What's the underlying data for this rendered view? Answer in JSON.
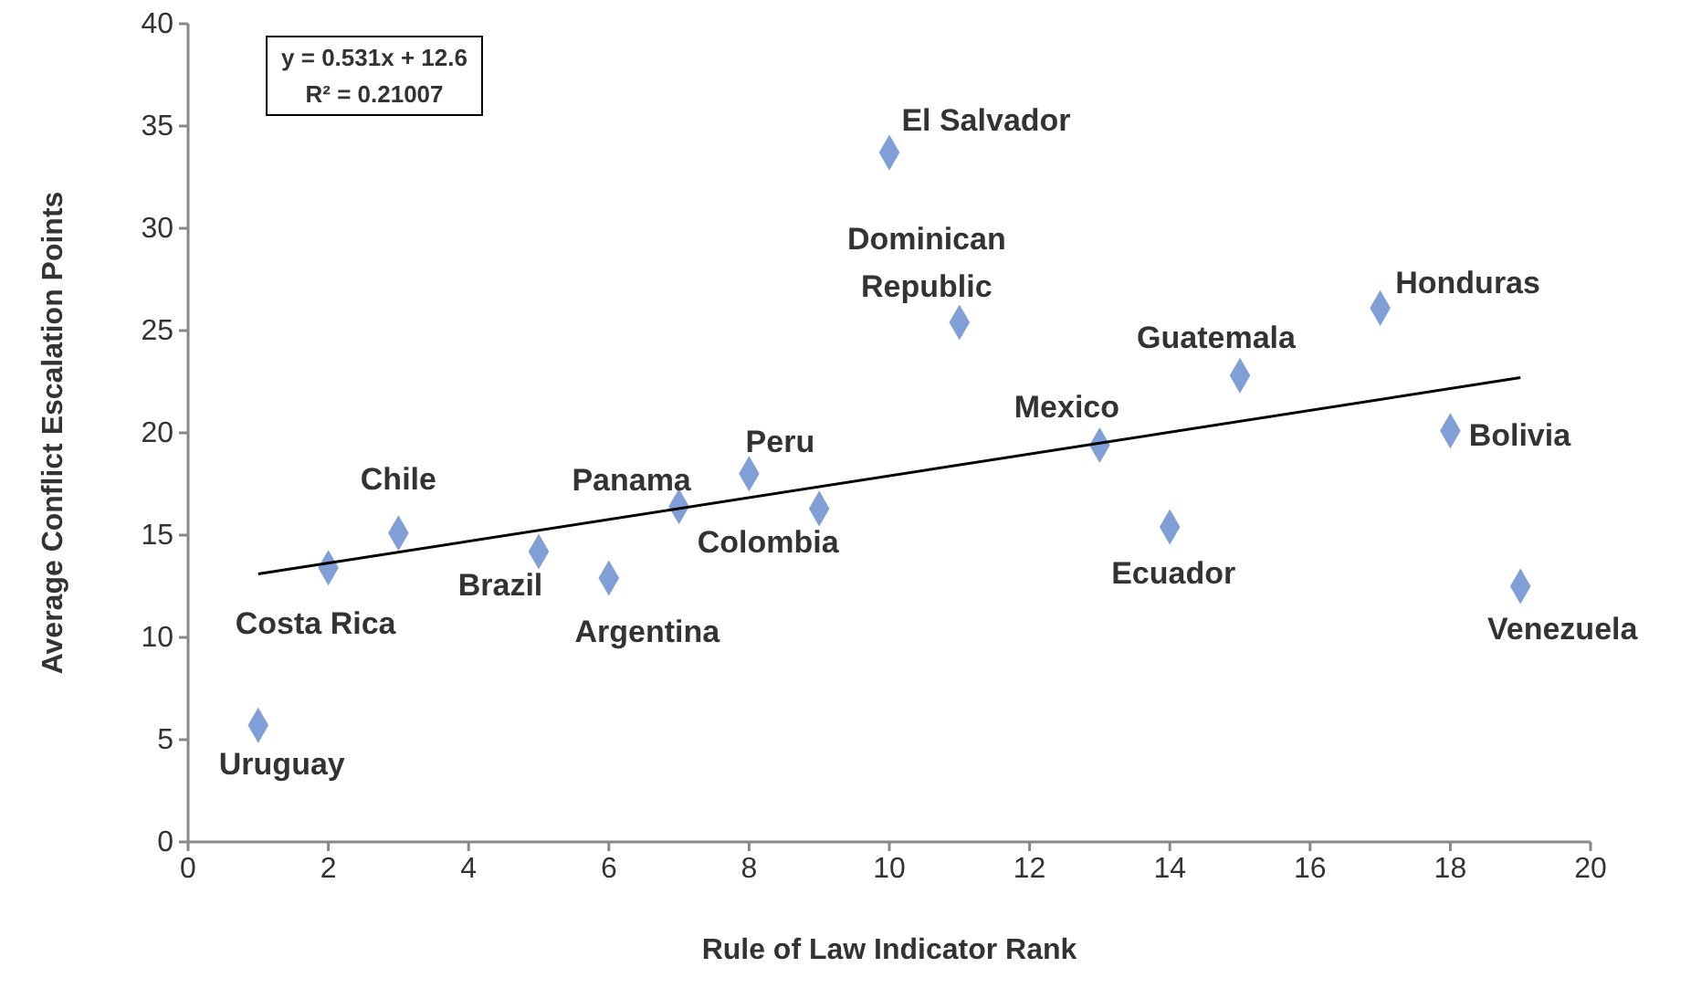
{
  "chart_data": {
    "type": "scatter",
    "xlabel": "Rule of Law Indicator Rank",
    "ylabel": "Average Conflict Escalation Points",
    "xlim": [
      0,
      20
    ],
    "ylim": [
      0,
      40
    ],
    "xticks": [
      0,
      2,
      4,
      6,
      8,
      10,
      12,
      14,
      16,
      18,
      20
    ],
    "yticks": [
      0,
      5,
      10,
      15,
      20,
      25,
      30,
      35,
      40
    ],
    "grid": false,
    "marker": "diamond",
    "series": [
      {
        "color": "#7f9fd6",
        "x": [
          1,
          2,
          3,
          5,
          6,
          7,
          8,
          9,
          10,
          11,
          13,
          14,
          15,
          17,
          18,
          19
        ],
        "values": [
          5.7,
          13.4,
          15.1,
          14.2,
          12.9,
          16.4,
          18.0,
          16.3,
          33.7,
          25.4,
          19.4,
          15.4,
          22.8,
          26.1,
          20.1,
          12.5
        ]
      },
      {
        "type": "line",
        "marker": "none",
        "color": "#000000",
        "x": [
          1,
          19
        ],
        "values": [
          13.1,
          22.7
        ]
      }
    ],
    "annotations": [
      "y = 0.531x + 12.6",
      "R² = 0.21007",
      {
        "text": "Uruguay",
        "x": 1,
        "y": 5.7
      },
      {
        "text": "Costa Rica",
        "x": 2,
        "y": 13.4
      },
      {
        "text": "Chile",
        "x": 3,
        "y": 15.1
      },
      {
        "text": "Brazil",
        "x": 5,
        "y": 14.2
      },
      {
        "text": "Argentina",
        "x": 6,
        "y": 12.9
      },
      {
        "text": "Panama",
        "x": 7,
        "y": 16.4
      },
      {
        "text": "Peru",
        "x": 8,
        "y": 18.0
      },
      {
        "text": "Colombia",
        "x": 9,
        "y": 16.3
      },
      {
        "text": "El Salvador",
        "x": 10,
        "y": 33.7
      },
      {
        "text": "Dominican Republic",
        "x": 11,
        "y": 25.4
      },
      {
        "text": "Mexico",
        "x": 13,
        "y": 19.4
      },
      {
        "text": "Ecuador",
        "x": 14,
        "y": 15.4
      },
      {
        "text": "Guatemala",
        "x": 15,
        "y": 22.8
      },
      {
        "text": "Honduras",
        "x": 17,
        "y": 26.1
      },
      {
        "text": "Bolivia",
        "x": 18,
        "y": 20.1
      },
      {
        "text": "Venezuela",
        "x": 19,
        "y": 12.5
      }
    ]
  }
}
